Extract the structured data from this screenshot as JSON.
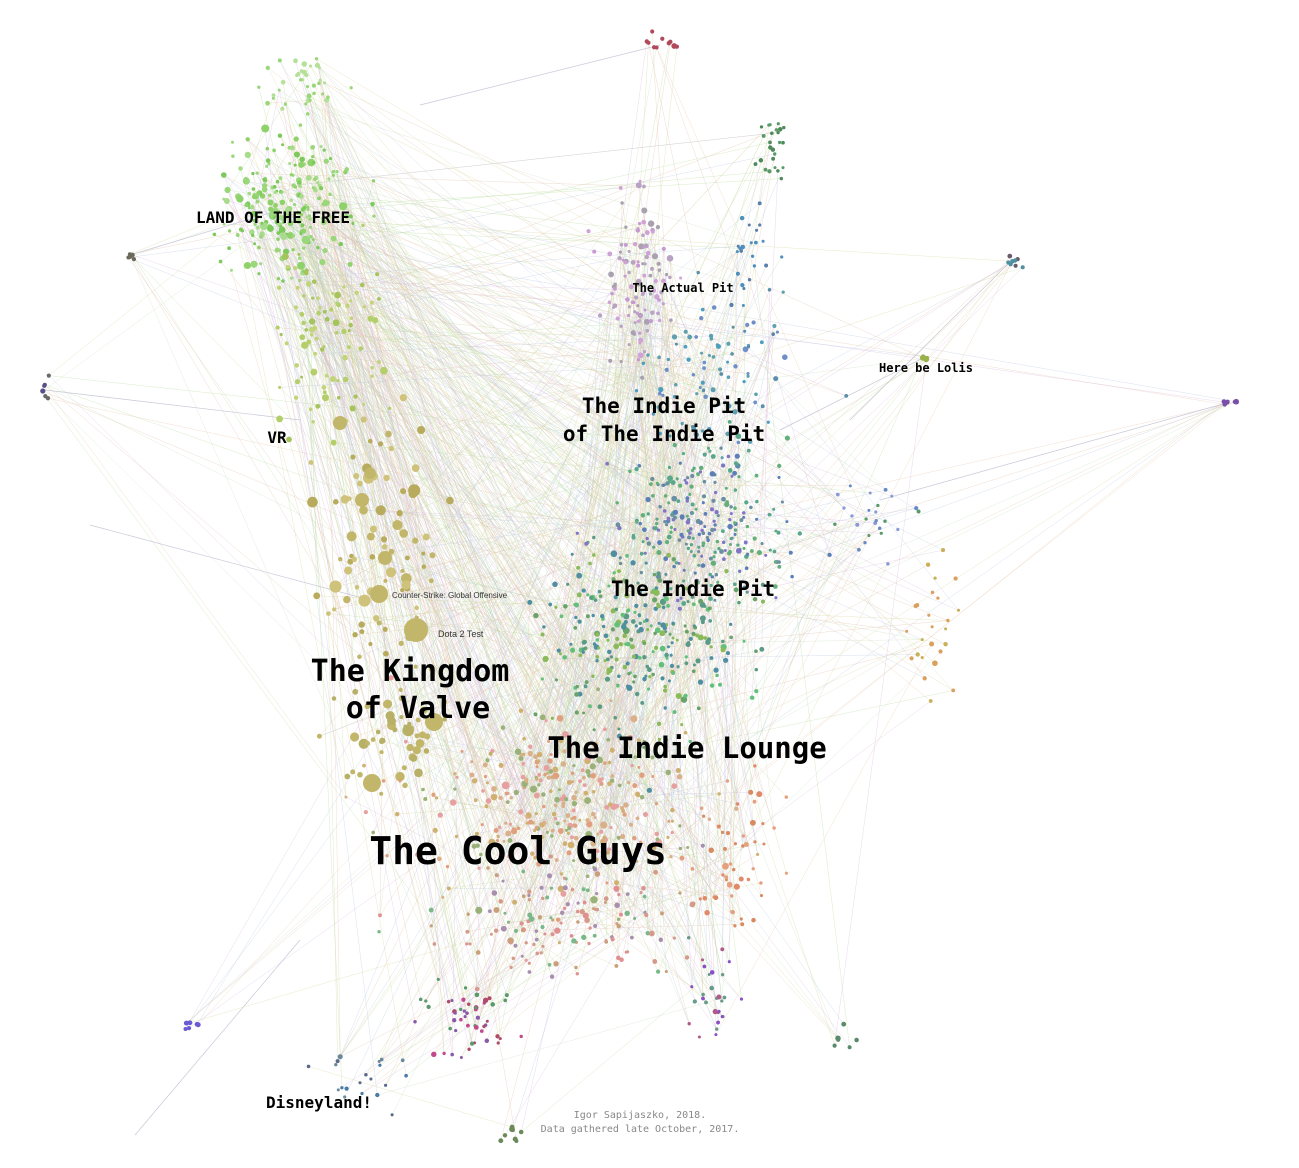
{
  "community_labels": [
    {
      "id": "land-of-the-free",
      "text": "LAND OF THE FREE"
    },
    {
      "id": "the-actual-pit",
      "text": "The Actual Pit"
    },
    {
      "id": "here-be-lolis",
      "text": "Here be Lolis"
    },
    {
      "id": "vr",
      "text": "VR"
    },
    {
      "id": "indie-pit-of-indie-pit-line1",
      "text": "The Indie Pit"
    },
    {
      "id": "indie-pit-of-indie-pit-line2",
      "text": "of The Indie Pit"
    },
    {
      "id": "the-indie-pit",
      "text": "The Indie Pit"
    },
    {
      "id": "kingdom-of-valve-line1",
      "text": "The Kingdom"
    },
    {
      "id": "kingdom-of-valve-line2",
      "text": "of Valve"
    },
    {
      "id": "the-indie-lounge",
      "text": "The Indie Lounge"
    },
    {
      "id": "the-cool-guys",
      "text": "The Cool Guys"
    },
    {
      "id": "disneyland",
      "text": "Disneyland!"
    }
  ],
  "node_labels": [
    {
      "id": "csgo",
      "text": "Counter-Strike: Global Offensive"
    },
    {
      "id": "dota2test",
      "text": "Dota 2 Test"
    }
  ],
  "credits": {
    "line1": "Igor Sapijaszko, 2018.",
    "line2": "Data gathered late October, 2017."
  },
  "colors": {
    "background": "#ffffff",
    "land_of_the_free": "#8fd16a",
    "kingdom_of_valve": "#c2b66b",
    "indie_pit": "#5a8fa8",
    "actual_pit": "#c79ad1",
    "cool_guys": "#e0a080",
    "indie_lounge": "#63c07a"
  }
}
